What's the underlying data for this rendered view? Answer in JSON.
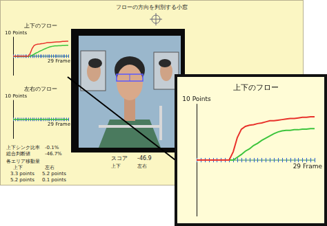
{
  "screen": {
    "title": "フローの方向を判別する小窓",
    "score": {
      "label": "スコア",
      "value": -46.9,
      "columns": [
        "上下",
        "左右"
      ]
    },
    "stats": [
      {
        "label": "上下シンク比率",
        "value": "-0.1%"
      },
      {
        "label": "総合判断値",
        "value": "-46.7%"
      }
    ],
    "area_movement": {
      "label": "各エリア移動量",
      "columns": [
        "上下",
        "左右"
      ],
      "rows": [
        [
          "3.3 points",
          "5.2 points"
        ],
        [
          "5.2 points",
          "0.1 points"
        ]
      ]
    }
  },
  "chart_data": [
    {
      "type": "line",
      "title": "上下のフロー",
      "x": [
        0,
        1,
        2,
        3,
        4,
        5,
        6,
        7,
        8,
        9,
        10,
        11,
        12,
        13,
        14,
        15,
        16,
        17,
        18,
        19,
        20,
        21,
        22,
        23,
        24,
        25,
        26,
        27,
        28,
        29
      ],
      "series": [
        {
          "color": "#e8302a",
          "values": [
            0,
            0,
            0,
            0,
            0,
            0,
            0,
            0,
            0,
            1.5,
            4,
            5.5,
            6,
            6.2,
            6.3,
            6.5,
            6.6,
            6.8,
            7,
            7,
            7.1,
            7.2,
            7.3,
            7.4,
            7.4,
            7.5,
            7.6,
            7.6,
            7.7,
            7.7
          ]
        },
        {
          "color": "#3cc43c",
          "values": [
            0,
            0,
            0,
            0,
            0,
            0,
            0,
            0,
            0,
            0,
            0.5,
            1,
            1.6,
            2,
            2.6,
            3,
            3.5,
            3.9,
            4.3,
            4.7,
            5,
            5.2,
            5.3,
            5.3,
            5.4,
            5.4,
            5.5,
            5.5,
            5.6,
            5.6
          ]
        }
      ],
      "xlim": [
        0,
        29
      ],
      "ylim": [
        -10,
        10
      ],
      "xticks": [
        {
          "value": 29,
          "label": "29 Frame"
        }
      ],
      "yticks": [
        {
          "value": 10,
          "label": "10 Points"
        }
      ],
      "grid": false
    },
    {
      "type": "line",
      "title": "左右のフロー",
      "x": [
        0,
        1,
        2,
        3,
        4,
        5,
        6,
        7,
        8,
        9,
        10,
        11,
        12,
        13,
        14,
        15,
        16,
        17,
        18,
        19,
        20,
        21,
        22,
        23,
        24,
        25,
        26,
        27,
        28,
        29
      ],
      "series": [
        {
          "color": "#3cc43c",
          "values": [
            0,
            0,
            0,
            0,
            0,
            0,
            0,
            0,
            0,
            0,
            0,
            0,
            0,
            0,
            0,
            0,
            0,
            0,
            0,
            0,
            0,
            0,
            0,
            0,
            0,
            0,
            0,
            0,
            0,
            0
          ]
        }
      ],
      "xlim": [
        0,
        29
      ],
      "ylim": [
        -10,
        10
      ],
      "xticks": [
        {
          "value": 29,
          "label": "29 Frame"
        }
      ],
      "yticks": [
        {
          "value": 10,
          "label": "10 Points"
        }
      ],
      "grid": false
    },
    {
      "type": "line",
      "title": "上下のフロー",
      "x": [
        0,
        1,
        2,
        3,
        4,
        5,
        6,
        7,
        8,
        9,
        10,
        11,
        12,
        13,
        14,
        15,
        16,
        17,
        18,
        19,
        20,
        21,
        22,
        23,
        24,
        25,
        26,
        27,
        28,
        29
      ],
      "series": [
        {
          "color": "#e8302a",
          "values": [
            0,
            0,
            0,
            0,
            0,
            0,
            0,
            0,
            0,
            1.5,
            4,
            5.5,
            6,
            6.2,
            6.3,
            6.5,
            6.6,
            6.8,
            7,
            7,
            7.1,
            7.2,
            7.3,
            7.4,
            7.4,
            7.5,
            7.6,
            7.6,
            7.7,
            7.7
          ]
        },
        {
          "color": "#3cc43c",
          "values": [
            0,
            0,
            0,
            0,
            0,
            0,
            0,
            0,
            0,
            0,
            0.5,
            1,
            1.6,
            2,
            2.6,
            3,
            3.5,
            3.9,
            4.3,
            4.7,
            5,
            5.2,
            5.3,
            5.3,
            5.4,
            5.4,
            5.5,
            5.5,
            5.6,
            5.6
          ]
        }
      ],
      "xlim": [
        0,
        29
      ],
      "ylim": [
        -10,
        10
      ],
      "xticks": [
        {
          "value": 29,
          "label": "29 Frame"
        }
      ],
      "yticks": [
        {
          "value": 10,
          "label": "10 Points"
        }
      ],
      "grid": false
    }
  ]
}
